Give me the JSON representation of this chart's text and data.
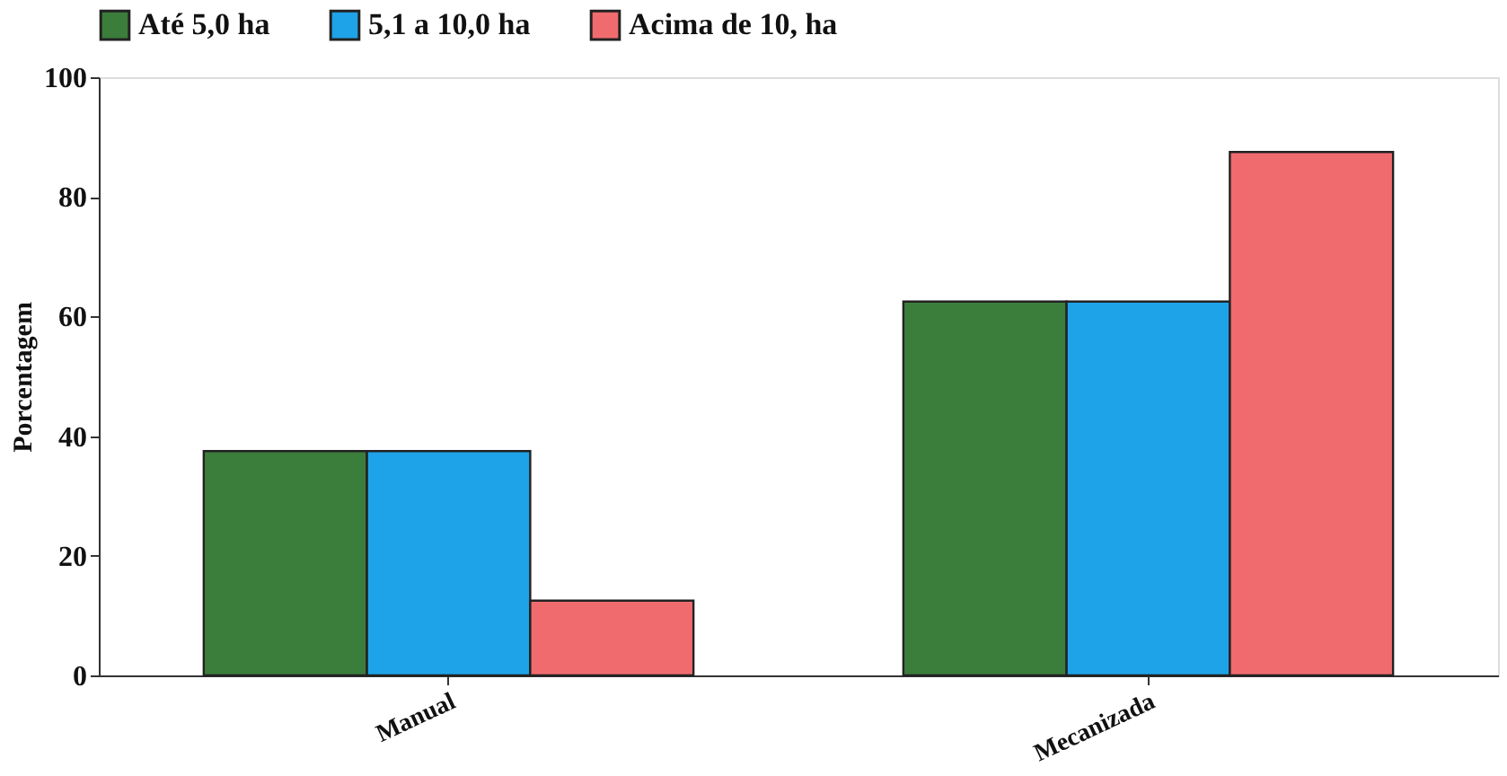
{
  "chart_data": {
    "type": "bar",
    "ylabel": "Porcentagem",
    "categories": [
      "Manual",
      "Mecanizada"
    ],
    "series": [
      {
        "name": "Até 5,0 ha",
        "color": "#3b7d3b",
        "values": [
          37.5,
          62.5
        ]
      },
      {
        "name": "5,1 a 10,0 ha",
        "color": "#1ea3e8",
        "values": [
          37.5,
          62.5
        ]
      },
      {
        "name": "Acima de 10, ha",
        "color": "#f06b6e",
        "values": [
          12.5,
          87.5
        ]
      }
    ],
    "ylim": [
      0,
      100
    ],
    "yticks": [
      0,
      20,
      40,
      60,
      80,
      100
    ],
    "grid": false,
    "legend": "top"
  }
}
